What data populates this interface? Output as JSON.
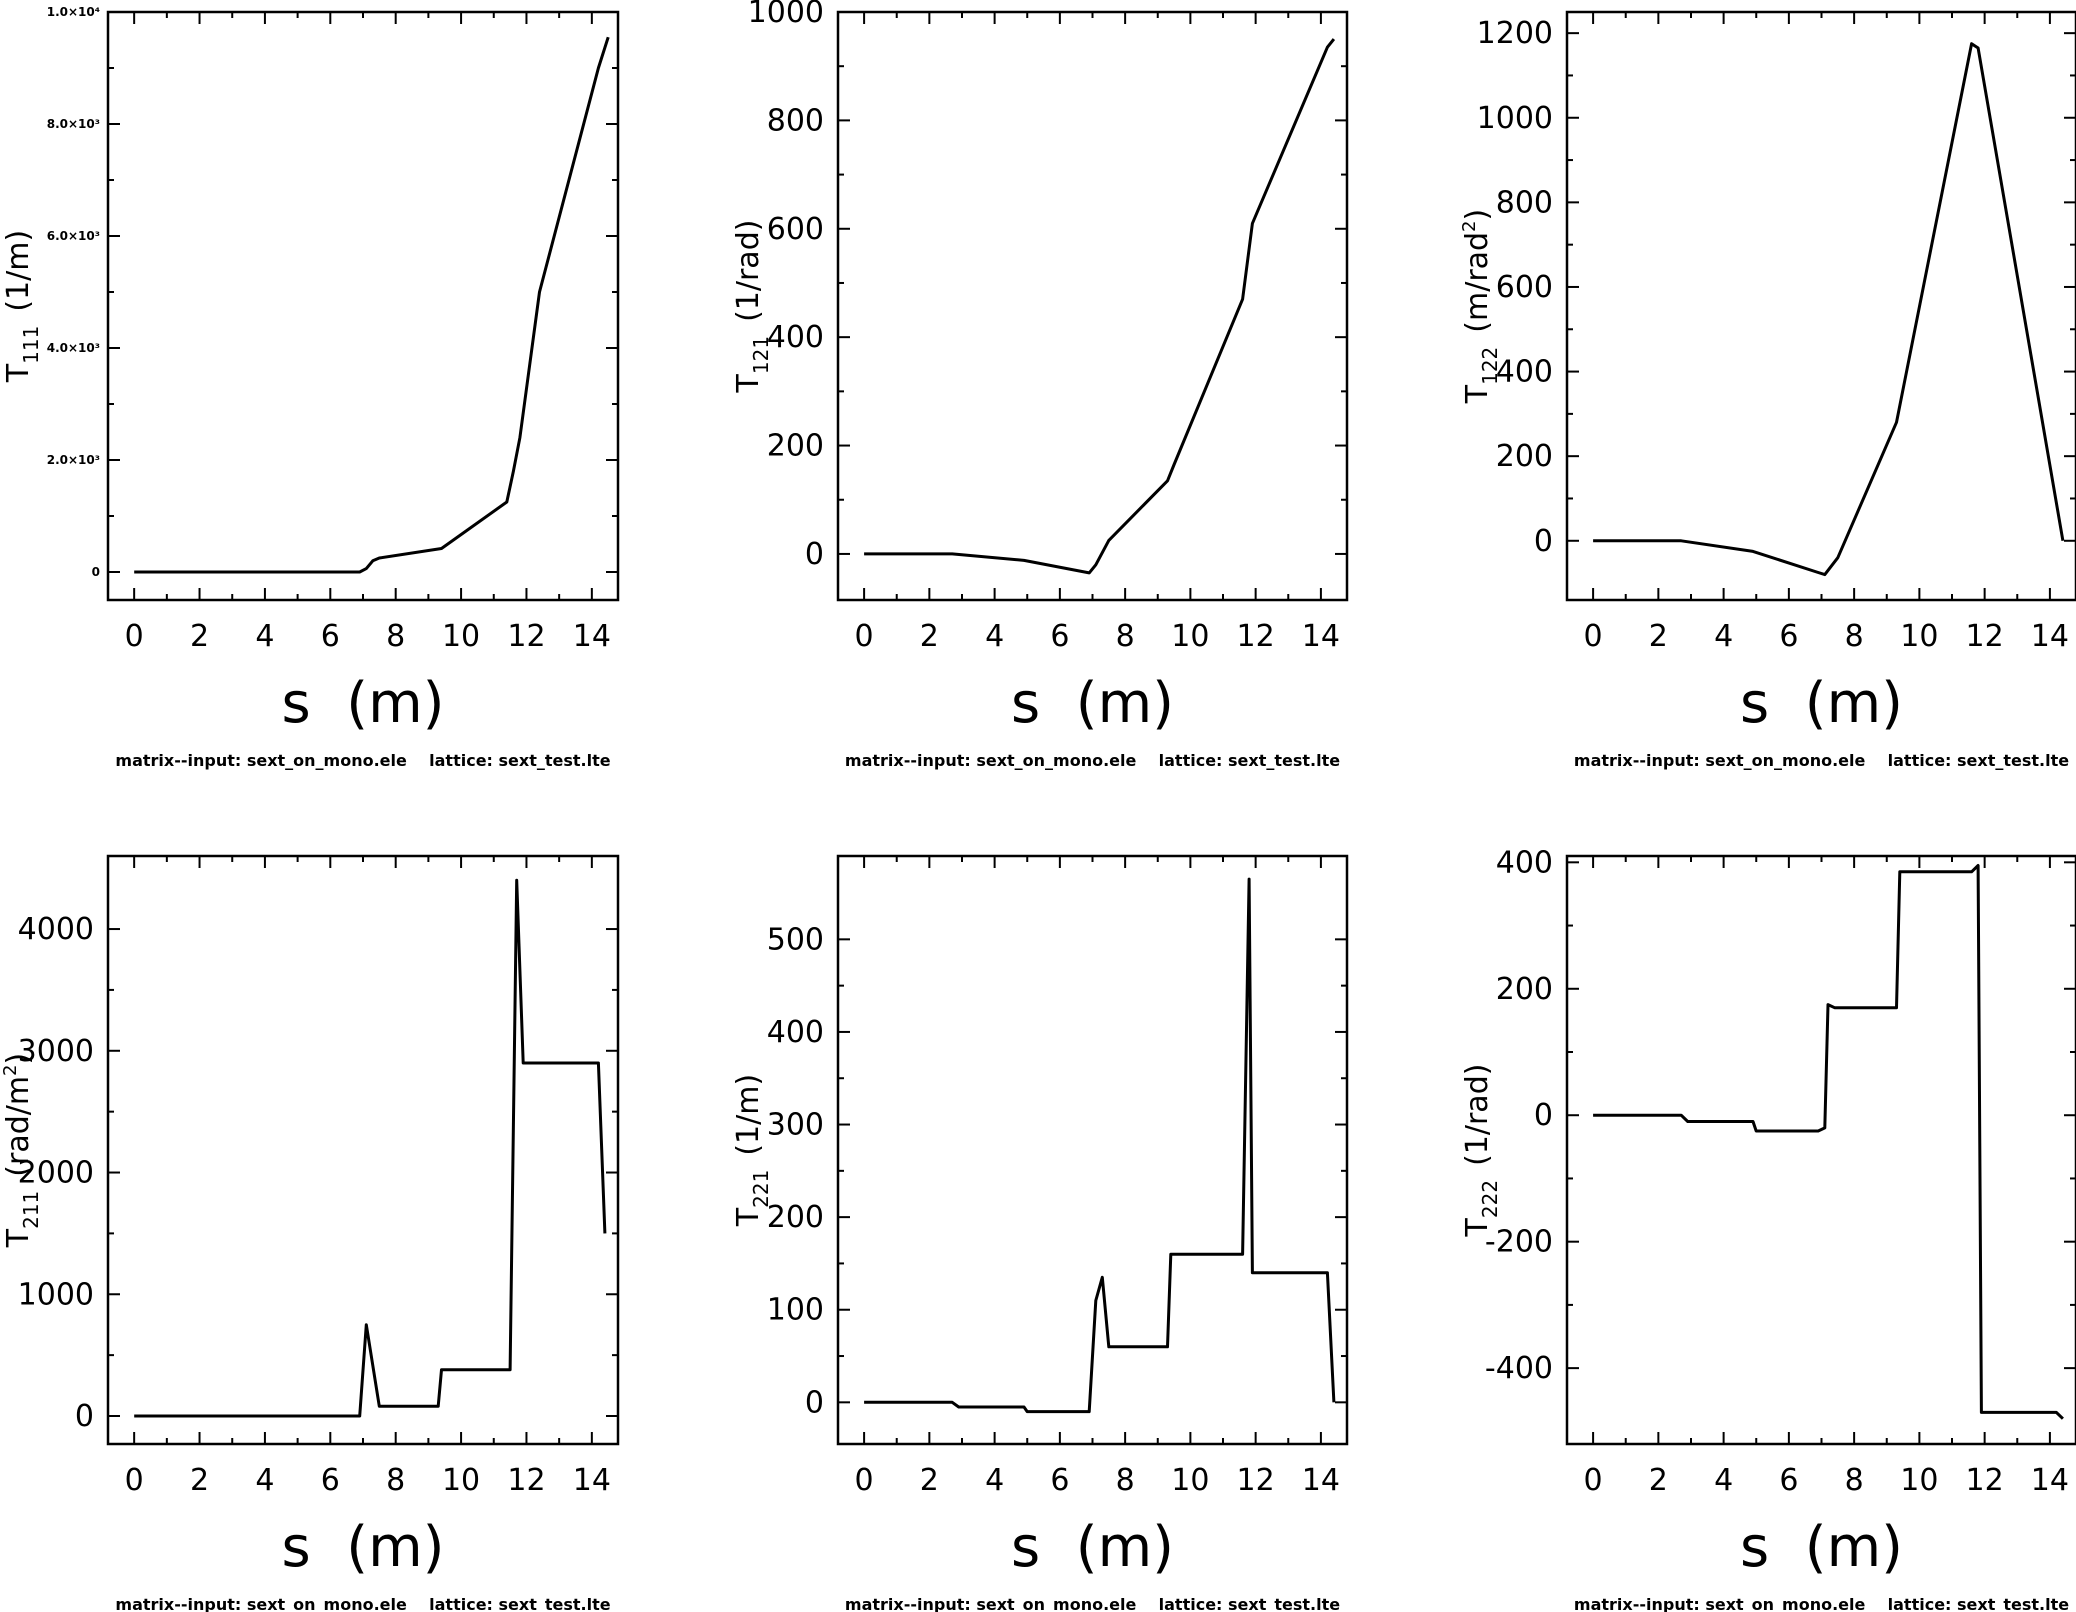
{
  "chart_data": [
    {
      "type": "line",
      "ylabel_main": "T",
      "ylabel_sub": "111",
      "ylabel_unit": "(1/m)",
      "ylabel_sup": "",
      "xlabel": "s  (m)",
      "xlim": [
        -0.8,
        14.8
      ],
      "ylim": [
        -500,
        10000
      ],
      "xticks": [
        0,
        2,
        4,
        6,
        8,
        10,
        12,
        14
      ],
      "xtick_labels": [
        "0",
        "2",
        "4",
        "6",
        "8",
        "10",
        "12",
        "14"
      ],
      "yticks": [
        0,
        2000,
        4000,
        6000,
        8000,
        10000
      ],
      "ytick_labels": [
        "0",
        "2.0×10³",
        "4.0×10³",
        "6.0×10³",
        "8.0×10³",
        "1.0×10⁴"
      ],
      "x": [
        0,
        6.9,
        7.1,
        7.3,
        7.5,
        9.4,
        11.4,
        11.6,
        11.8,
        12.4,
        14.2,
        14.5
      ],
      "y": [
        0,
        0,
        60,
        200,
        250,
        420,
        1250,
        1800,
        2400,
        5000,
        9000,
        9550
      ],
      "caption": "matrix--input: sext_on_mono.ele    lattice: sext_test.lte"
    },
    {
      "type": "line",
      "ylabel_main": "T",
      "ylabel_sub": "121",
      "ylabel_unit": "(1/rad)",
      "ylabel_sup": "",
      "xlabel": "s  (m)",
      "xlim": [
        -0.8,
        14.8
      ],
      "ylim": [
        -85,
        1000
      ],
      "xticks": [
        0,
        2,
        4,
        6,
        8,
        10,
        12,
        14
      ],
      "xtick_labels": [
        "0",
        "2",
        "4",
        "6",
        "8",
        "10",
        "12",
        "14"
      ],
      "yticks": [
        0,
        200,
        400,
        600,
        800,
        1000
      ],
      "ytick_labels": [
        "0",
        "200",
        "400",
        "600",
        "800",
        "1000"
      ],
      "x": [
        0,
        2.7,
        4.9,
        6.9,
        7.1,
        7.5,
        9.3,
        9.5,
        11.6,
        11.9,
        14.2,
        14.4
      ],
      "y": [
        0,
        0,
        -12,
        -35,
        -20,
        25,
        135,
        165,
        470,
        610,
        935,
        950
      ],
      "caption": "matrix--input: sext_on_mono.ele    lattice: sext_test.lte"
    },
    {
      "type": "line",
      "ylabel_main": "T",
      "ylabel_sub": "122",
      "ylabel_unit": "(m/rad",
      "ylabel_sup": "2",
      "ylabel_close": ")",
      "xlabel": "s  (m)",
      "xlim": [
        -0.8,
        14.8
      ],
      "ylim": [
        -140,
        1250
      ],
      "xticks": [
        0,
        2,
        4,
        6,
        8,
        10,
        12,
        14
      ],
      "xtick_labels": [
        "0",
        "2",
        "4",
        "6",
        "8",
        "10",
        "12",
        "14"
      ],
      "yticks": [
        0,
        200,
        400,
        600,
        800,
        1000,
        1200
      ],
      "ytick_labels": [
        "0",
        "200",
        "400",
        "600",
        "800",
        "1000",
        "1200"
      ],
      "x": [
        0,
        2.7,
        4.9,
        6.9,
        7.1,
        7.5,
        9.3,
        11.6,
        11.8,
        14.4
      ],
      "y": [
        0,
        0,
        -25,
        -75,
        -80,
        -40,
        280,
        1175,
        1165,
        0
      ],
      "caption": "matrix--input: sext_on_mono.ele    lattice: sext_test.lte"
    },
    {
      "type": "line",
      "ylabel_main": "T",
      "ylabel_sub": "211",
      "ylabel_unit": "(rad/m",
      "ylabel_sup": "2",
      "ylabel_close": ")",
      "xlabel": "s  (m)",
      "xlim": [
        -0.8,
        14.8
      ],
      "ylim": [
        -230,
        4600
      ],
      "xticks": [
        0,
        2,
        4,
        6,
        8,
        10,
        12,
        14
      ],
      "xtick_labels": [
        "0",
        "2",
        "4",
        "6",
        "8",
        "10",
        "12",
        "14"
      ],
      "yticks": [
        0,
        1000,
        2000,
        3000,
        4000
      ],
      "ytick_labels": [
        "0",
        "1000",
        "2000",
        "3000",
        "4000"
      ],
      "x": [
        0,
        6.9,
        7.1,
        7.5,
        9.3,
        9.4,
        11.5,
        11.7,
        11.9,
        14.2,
        14.4
      ],
      "y": [
        0,
        0,
        750,
        80,
        80,
        380,
        380,
        4400,
        2900,
        2900,
        1500
      ],
      "caption": "matrix--input: sext_on_mono.ele    lattice: sext_test.lte"
    },
    {
      "type": "line",
      "ylabel_main": "T",
      "ylabel_sub": "221",
      "ylabel_unit": "(1/m)",
      "ylabel_sup": "",
      "xlabel": "s  (m)",
      "xlim": [
        -0.8,
        14.8
      ],
      "ylim": [
        -45,
        590
      ],
      "xticks": [
        0,
        2,
        4,
        6,
        8,
        10,
        12,
        14
      ],
      "xtick_labels": [
        "0",
        "2",
        "4",
        "6",
        "8",
        "10",
        "12",
        "14"
      ],
      "yticks": [
        0,
        100,
        200,
        300,
        400,
        500
      ],
      "ytick_labels": [
        "0",
        "100",
        "200",
        "300",
        "400",
        "500"
      ],
      "x": [
        0,
        2.7,
        2.9,
        4.9,
        5.0,
        6.9,
        7.1,
        7.3,
        7.5,
        9.3,
        9.4,
        11.6,
        11.8,
        11.9,
        14.2,
        14.4
      ],
      "y": [
        0,
        0,
        -5,
        -5,
        -10,
        -10,
        110,
        135,
        60,
        60,
        160,
        160,
        565,
        140,
        140,
        0
      ],
      "caption": "matrix--input: sext_on_mono.ele    lattice: sext_test.lte"
    },
    {
      "type": "line",
      "ylabel_main": "T",
      "ylabel_sub": "222",
      "ylabel_unit": "(1/rad)",
      "ylabel_sup": "",
      "xlabel": "s  (m)",
      "xlim": [
        -0.8,
        14.8
      ],
      "ylim": [
        -520,
        410
      ],
      "xticks": [
        0,
        2,
        4,
        6,
        8,
        10,
        12,
        14
      ],
      "xtick_labels": [
        "0",
        "2",
        "4",
        "6",
        "8",
        "10",
        "12",
        "14"
      ],
      "yticks": [
        -400,
        -200,
        0,
        200,
        400
      ],
      "ytick_labels": [
        "-400",
        "-200",
        "0",
        "200",
        "400"
      ],
      "x": [
        0,
        2.7,
        2.9,
        4.9,
        5.0,
        6.9,
        7.1,
        7.2,
        7.4,
        9.3,
        9.4,
        11.6,
        11.8,
        11.9,
        14.2,
        14.4
      ],
      "y": [
        0,
        0,
        -10,
        -10,
        -25,
        -25,
        -20,
        175,
        170,
        170,
        385,
        385,
        395,
        -470,
        -470,
        -480
      ],
      "caption": "matrix--input: sext_on_mono.ele    lattice: sext_test.lte"
    }
  ]
}
